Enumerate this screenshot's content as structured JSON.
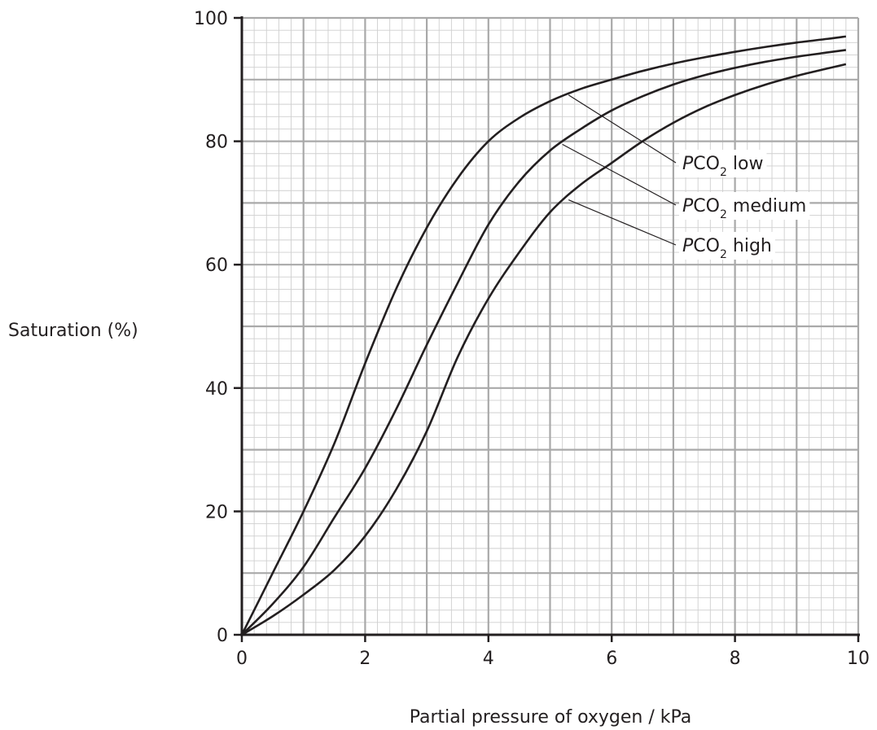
{
  "chart_data": {
    "type": "line",
    "xlabel": "Partial pressure of oxygen / kPa",
    "ylabel": "Saturation (%)",
    "xlim": [
      0,
      10
    ],
    "ylim": [
      0,
      100
    ],
    "x_ticks": [
      "0",
      "2",
      "4",
      "6",
      "8",
      "10"
    ],
    "y_ticks": [
      "0",
      "20",
      "40",
      "60",
      "80",
      "100"
    ],
    "grid": true,
    "series": [
      {
        "name": "PCO2 low",
        "label_prefix": "P",
        "label_main": "CO",
        "label_sub": "2",
        "label_suffix": " low",
        "pointer": {
          "x": 5.3,
          "y": 87.5
        },
        "points": [
          [
            0,
            0
          ],
          [
            0.5,
            10
          ],
          [
            1,
            20
          ],
          [
            1.5,
            31
          ],
          [
            2,
            44
          ],
          [
            2.5,
            56
          ],
          [
            3,
            66
          ],
          [
            3.5,
            74
          ],
          [
            4,
            80
          ],
          [
            4.5,
            83.8
          ],
          [
            5,
            86.5
          ],
          [
            5.5,
            88.5
          ],
          [
            6,
            90
          ],
          [
            6.5,
            91.4
          ],
          [
            7,
            92.6
          ],
          [
            7.5,
            93.6
          ],
          [
            8,
            94.5
          ],
          [
            8.5,
            95.3
          ],
          [
            9,
            96
          ],
          [
            9.5,
            96.6
          ],
          [
            9.8,
            97
          ]
        ]
      },
      {
        "name": "PCO2 medium",
        "label_prefix": "P",
        "label_main": "CO",
        "label_sub": "2",
        "label_suffix": " medium",
        "pointer": {
          "x": 5.2,
          "y": 79.5
        },
        "points": [
          [
            0,
            0
          ],
          [
            0.5,
            5
          ],
          [
            1,
            11
          ],
          [
            1.5,
            19
          ],
          [
            2,
            27
          ],
          [
            2.5,
            36.5
          ],
          [
            3,
            47
          ],
          [
            3.5,
            57
          ],
          [
            4,
            66.5
          ],
          [
            4.5,
            73.5
          ],
          [
            5,
            78.5
          ],
          [
            5.5,
            82
          ],
          [
            6,
            85
          ],
          [
            6.5,
            87.3
          ],
          [
            7,
            89.2
          ],
          [
            7.5,
            90.7
          ],
          [
            8,
            91.9
          ],
          [
            8.5,
            92.9
          ],
          [
            9,
            93.7
          ],
          [
            9.5,
            94.4
          ],
          [
            9.8,
            94.8
          ]
        ]
      },
      {
        "name": "PCO2 high",
        "label_prefix": "P",
        "label_main": "CO",
        "label_sub": "2",
        "label_suffix": " high",
        "pointer": {
          "x": 5.3,
          "y": 70.5
        },
        "points": [
          [
            0,
            0
          ],
          [
            0.5,
            3
          ],
          [
            1,
            6.5
          ],
          [
            1.5,
            10.5
          ],
          [
            2,
            16
          ],
          [
            2.5,
            23.5
          ],
          [
            3,
            33
          ],
          [
            3.5,
            45
          ],
          [
            4,
            54.5
          ],
          [
            4.5,
            62
          ],
          [
            5,
            68.5
          ],
          [
            5.5,
            73
          ],
          [
            6,
            76.5
          ],
          [
            6.5,
            80
          ],
          [
            7,
            83
          ],
          [
            7.5,
            85.5
          ],
          [
            8,
            87.5
          ],
          [
            8.5,
            89.2
          ],
          [
            9,
            90.6
          ],
          [
            9.5,
            91.8
          ],
          [
            9.8,
            92.5
          ]
        ]
      }
    ]
  }
}
